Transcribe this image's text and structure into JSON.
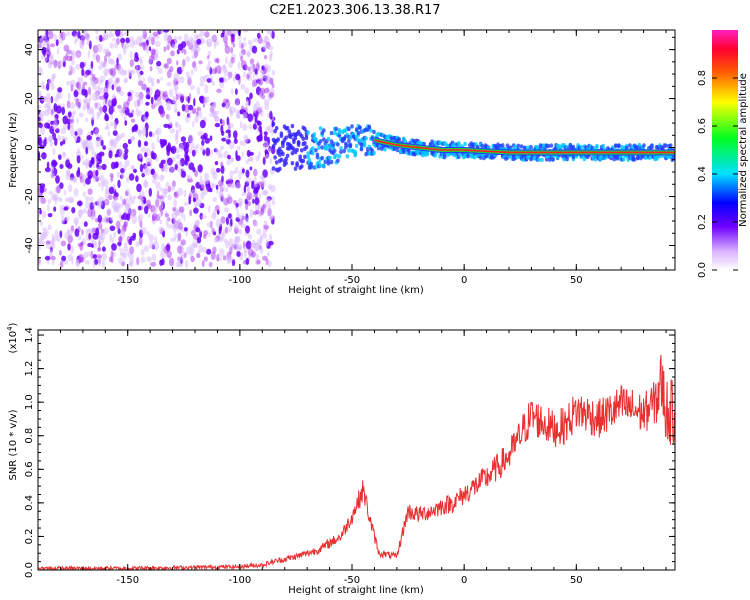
{
  "title": "C2E1.2023.306.13.38.R17",
  "chart_data": [
    {
      "type": "heatmap",
      "title": "C2E1.2023.306.13.38.R17",
      "xlabel": "Height of straight line (km)",
      "ylabel": "Frequency (Hz)",
      "xlim": [
        -190,
        94
      ],
      "ylim": [
        -50,
        48
      ],
      "x_ticks": [
        -150,
        -100,
        -50,
        0,
        50
      ],
      "x_tick_labels": [
        "-150",
        "-100",
        "-50",
        "0",
        "50"
      ],
      "y_ticks": [
        -40,
        -20,
        0,
        20,
        40
      ],
      "y_tick_labels": [
        "-40",
        "-20",
        "0",
        "20",
        "40"
      ],
      "colorbar": {
        "label": "Normalized spectral amplitude",
        "range": [
          0.0,
          1.0
        ],
        "ticks": [
          0.0,
          0.2,
          0.4,
          0.6,
          0.8
        ],
        "tick_labels": [
          "0.0",
          "0.2",
          "0.4",
          "0.6",
          "0.8"
        ]
      },
      "noise_region": {
        "x_range": [
          -190,
          -85
        ],
        "freq_spread": 48
      },
      "signal_centerline": [
        [
          -85,
          0
        ],
        [
          -60,
          0
        ],
        [
          -50,
          3
        ],
        [
          -40,
          3
        ],
        [
          -30,
          1
        ],
        [
          -10,
          -1
        ],
        [
          0,
          -1
        ],
        [
          20,
          -2
        ],
        [
          94,
          -2
        ]
      ],
      "colors": {
        "noise": "#a020f0",
        "signal_core": "#ff2020",
        "signal_mid": "#20d040",
        "signal_edge": "#2040ff"
      }
    },
    {
      "type": "line",
      "xlabel": "Height of straight line (km)",
      "ylabel": "SNR (10 * v/v)",
      "y_multiplier_label": "(x10",
      "y_multiplier_exp": "4",
      "xlim": [
        -190,
        94
      ],
      "ylim": [
        0.0,
        1.43
      ],
      "x_ticks": [
        -150,
        -100,
        -50,
        0,
        50
      ],
      "x_tick_labels": [
        "-150",
        "-100",
        "-50",
        "0",
        "50"
      ],
      "y_ticks": [
        0.0,
        0.2,
        0.4,
        0.6,
        0.8,
        1.0,
        1.2,
        1.4
      ],
      "y_tick_labels": [
        "0.0",
        "0.2",
        "0.4",
        "0.6",
        "0.8",
        "1.0",
        "1.2",
        "1.4"
      ],
      "color": "#e83030",
      "envelope": {
        "x": [
          -190,
          -150,
          -100,
          -90,
          -85,
          -75,
          -65,
          -55,
          -50,
          -45,
          -42,
          -38,
          -30,
          -27,
          -25,
          -20,
          -15,
          -10,
          -5,
          0,
          10,
          20,
          25,
          30,
          35,
          40,
          45,
          50,
          55,
          60,
          65,
          70,
          75,
          80,
          85,
          88,
          90,
          94
        ],
        "y": [
          0.01,
          0.01,
          0.02,
          0.03,
          0.05,
          0.08,
          0.12,
          0.2,
          0.32,
          0.48,
          0.3,
          0.1,
          0.08,
          0.25,
          0.35,
          0.33,
          0.35,
          0.38,
          0.4,
          0.45,
          0.55,
          0.68,
          0.8,
          0.92,
          0.88,
          0.84,
          0.86,
          0.95,
          0.93,
          0.9,
          0.94,
          0.98,
          0.96,
          0.93,
          1.0,
          1.12,
          0.95,
          0.93
        ]
      }
    }
  ]
}
